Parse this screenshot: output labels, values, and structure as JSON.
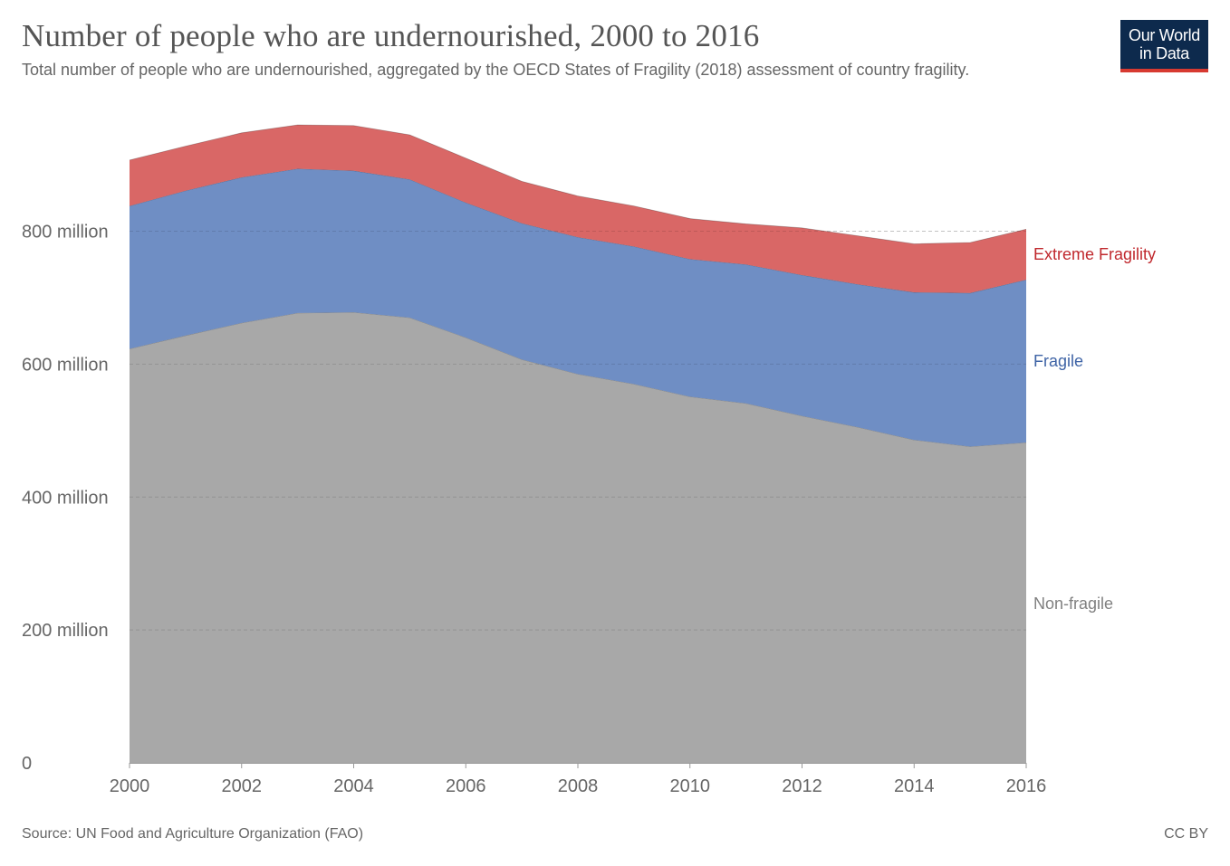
{
  "header": {
    "title": "Number of people who are undernourished, 2000 to 2016",
    "subtitle": "Total number of people who are undernourished, aggregated by the OECD States of Fragility (2018) assessment of country fragility."
  },
  "logo": {
    "line1": "Our World",
    "line2": "in Data",
    "bg_color": "#0d2a4d",
    "accent_color": "#d73a31"
  },
  "footer": {
    "source": "Source: UN Food and Agriculture Organization (FAO)",
    "license": "CC BY"
  },
  "chart_data": {
    "type": "area",
    "stacked": true,
    "title": "Number of people who are undernourished, 2000 to 2016",
    "xlabel": "",
    "ylabel": "",
    "x": [
      2000,
      2001,
      2002,
      2003,
      2004,
      2005,
      2006,
      2007,
      2008,
      2009,
      2010,
      2011,
      2012,
      2013,
      2014,
      2015,
      2016
    ],
    "xlim": [
      2000,
      2016
    ],
    "ylim": [
      0,
      960000000
    ],
    "x_ticks": [
      {
        "value": 2000,
        "label": "2000"
      },
      {
        "value": 2002,
        "label": "2002"
      },
      {
        "value": 2004,
        "label": "2004"
      },
      {
        "value": 2006,
        "label": "2006"
      },
      {
        "value": 2008,
        "label": "2008"
      },
      {
        "value": 2010,
        "label": "2010"
      },
      {
        "value": 2012,
        "label": "2012"
      },
      {
        "value": 2014,
        "label": "2014"
      },
      {
        "value": 2016,
        "label": "2016"
      }
    ],
    "y_ticks": [
      {
        "value": 0,
        "label": "0"
      },
      {
        "value": 200000000,
        "label": "200 million"
      },
      {
        "value": 400000000,
        "label": "400 million"
      },
      {
        "value": 600000000,
        "label": "600 million"
      },
      {
        "value": 800000000,
        "label": "800 million"
      }
    ],
    "grid": true,
    "series": [
      {
        "name": "Non-fragile",
        "color": "#a8a8a8",
        "label_color": "#808080",
        "values": [
          623000000,
          643000000,
          662000000,
          677000000,
          678000000,
          670000000,
          640000000,
          607000000,
          585000000,
          570000000,
          551000000,
          541000000,
          522000000,
          505000000,
          486000000,
          476000000,
          482000000
        ]
      },
      {
        "name": "Fragile",
        "color": "#6f8ec4",
        "label_color": "#3f64a6",
        "values": [
          215000000,
          218000000,
          219000000,
          217000000,
          213000000,
          208000000,
          203000000,
          205000000,
          206000000,
          207000000,
          207000000,
          209000000,
          212000000,
          215000000,
          222000000,
          231000000,
          245000000
        ]
      },
      {
        "name": "Extreme Fragility",
        "color": "#d96766",
        "label_color": "#c0282d",
        "values": [
          69000000,
          67000000,
          67000000,
          66000000,
          68000000,
          67000000,
          67000000,
          63000000,
          62000000,
          61000000,
          61000000,
          61000000,
          71000000,
          73000000,
          73000000,
          76000000,
          76000000
        ]
      }
    ]
  }
}
